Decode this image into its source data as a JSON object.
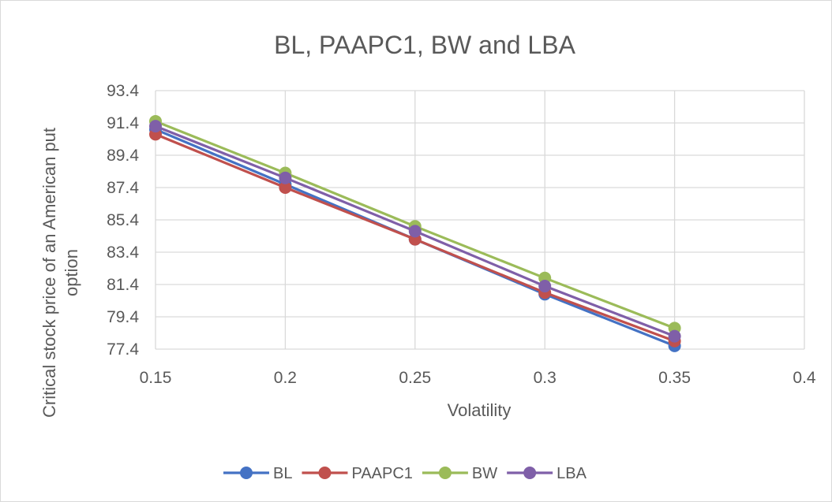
{
  "chart_data": {
    "type": "line",
    "title": "BL, PAAPC1, BW and LBA",
    "xlabel": "Volatility",
    "ylabel_lines": [
      "Critical stock price of an American put",
      "option"
    ],
    "x": [
      0.15,
      0.2,
      0.25,
      0.3,
      0.35
    ],
    "xlim": [
      0.15,
      0.4
    ],
    "ylim": [
      77.4,
      93.4
    ],
    "x_ticks": [
      "0.15",
      "0.2",
      "0.25",
      "0.3",
      "0.35",
      "0.4"
    ],
    "y_ticks": [
      "77.4",
      "79.4",
      "81.4",
      "83.4",
      "85.4",
      "87.4",
      "89.4",
      "91.4",
      "93.4"
    ],
    "grid": true,
    "legend_position": "bottom",
    "series": [
      {
        "name": "BL",
        "color": "#4472c4",
        "values": [
          91.0,
          87.6,
          84.2,
          80.8,
          77.6
        ]
      },
      {
        "name": "PAAPC1",
        "color": "#c0504d",
        "values": [
          90.7,
          87.4,
          84.2,
          80.9,
          77.9
        ]
      },
      {
        "name": "BW",
        "color": "#9bbb59",
        "values": [
          91.5,
          88.3,
          85.0,
          81.8,
          78.7
        ]
      },
      {
        "name": "LBA",
        "color": "#7f5fa8",
        "values": [
          91.2,
          88.0,
          84.7,
          81.3,
          78.2
        ]
      }
    ]
  }
}
